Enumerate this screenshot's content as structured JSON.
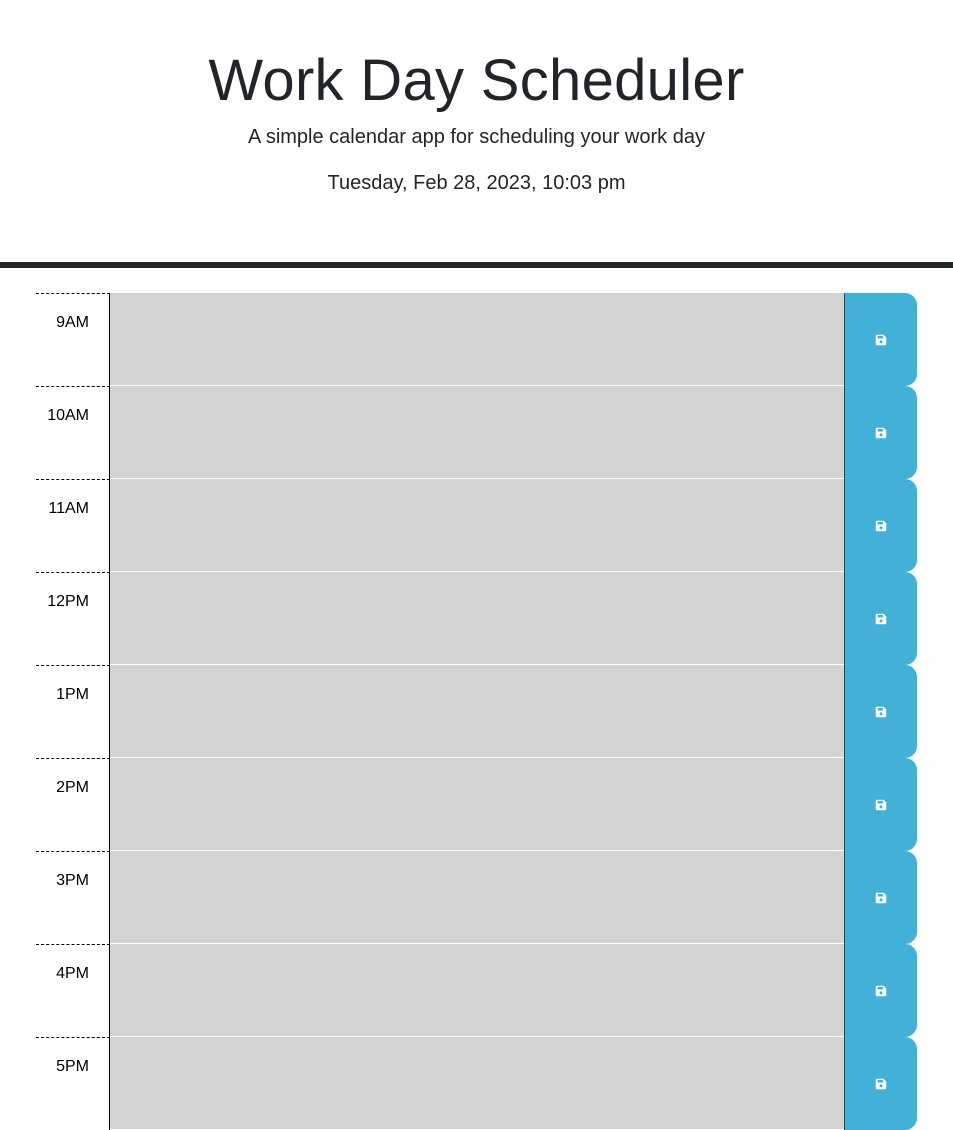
{
  "header": {
    "title": "Work Day Scheduler",
    "subtitle": "A simple calendar app for scheduling your work day",
    "current_day": "Tuesday, Feb 28, 2023, 10:03 pm"
  },
  "colors": {
    "past": "#d3d3d3",
    "save_button": "#43b0d8"
  },
  "time_blocks": [
    {
      "hour": "9AM",
      "description": "",
      "status": "past"
    },
    {
      "hour": "10AM",
      "description": "",
      "status": "past"
    },
    {
      "hour": "11AM",
      "description": "",
      "status": "past"
    },
    {
      "hour": "12PM",
      "description": "",
      "status": "past"
    },
    {
      "hour": "1PM",
      "description": "",
      "status": "past"
    },
    {
      "hour": "2PM",
      "description": "",
      "status": "past"
    },
    {
      "hour": "3PM",
      "description": "",
      "status": "past"
    },
    {
      "hour": "4PM",
      "description": "",
      "status": "past"
    },
    {
      "hour": "5PM",
      "description": "",
      "status": "past"
    }
  ],
  "icons": {
    "save": "floppy-disk-icon"
  }
}
